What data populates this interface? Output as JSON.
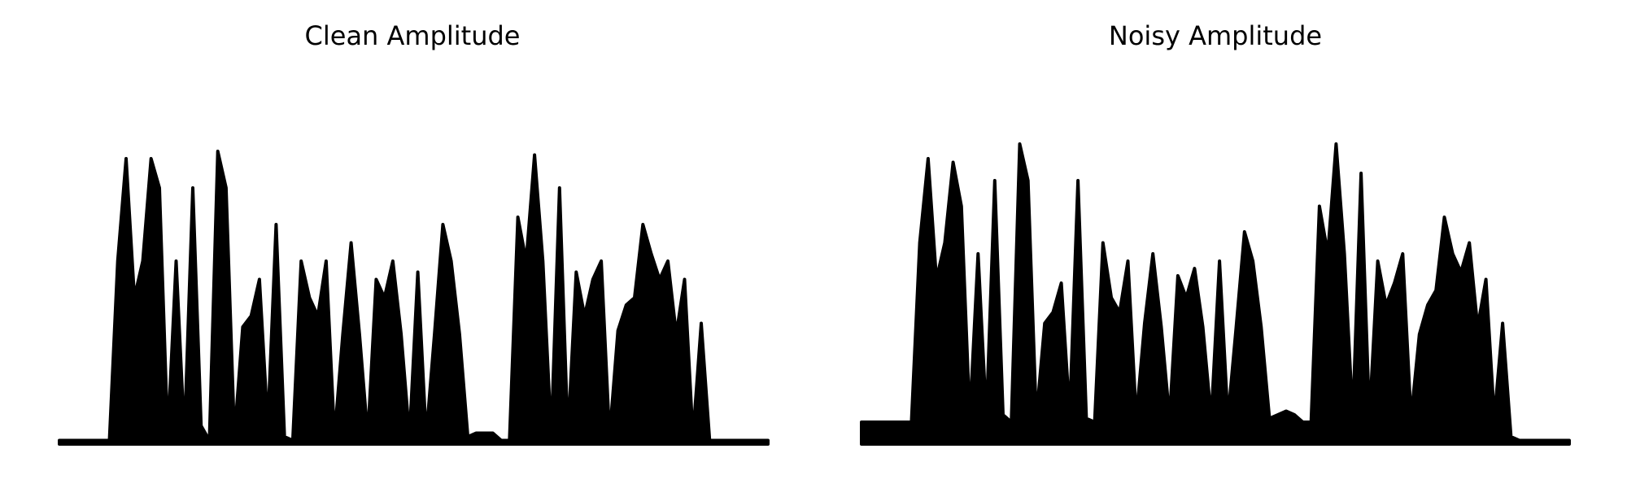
{
  "chart_data": [
    {
      "type": "line",
      "title": "Clean Amplitude",
      "color": "#000000",
      "ylim": [
        0,
        1
      ],
      "values": [
        0.01,
        0.01,
        0.01,
        0.01,
        0.01,
        0.01,
        0.01,
        0.5,
        0.78,
        0.4,
        0.5,
        0.78,
        0.7,
        0.02,
        0.5,
        0.02,
        0.7,
        0.05,
        0.01,
        0.8,
        0.7,
        0.02,
        0.32,
        0.35,
        0.45,
        0.05,
        0.6,
        0.02,
        0.01,
        0.5,
        0.4,
        0.35,
        0.5,
        0.02,
        0.3,
        0.55,
        0.3,
        0.02,
        0.45,
        0.4,
        0.5,
        0.3,
        0.02,
        0.47,
        0.02,
        0.3,
        0.6,
        0.5,
        0.3,
        0.02,
        0.03,
        0.03,
        0.03,
        0.01,
        0.01,
        0.62,
        0.5,
        0.79,
        0.5,
        0.02,
        0.7,
        0.02,
        0.47,
        0.35,
        0.45,
        0.5,
        0.02,
        0.31,
        0.38,
        0.4,
        0.6,
        0.52,
        0.45,
        0.5,
        0.3,
        0.45,
        0.02,
        0.33,
        0.01,
        0.01,
        0.01,
        0.01,
        0.01,
        0.01,
        0.01,
        0.01
      ],
      "peak": 1.0
    },
    {
      "type": "line",
      "title": "Noisy Amplitude",
      "color": "#000000",
      "ylim": [
        0,
        1
      ],
      "values": [
        0.06,
        0.06,
        0.06,
        0.06,
        0.06,
        0.06,
        0.06,
        0.55,
        0.78,
        0.45,
        0.55,
        0.77,
        0.65,
        0.07,
        0.52,
        0.07,
        0.72,
        0.08,
        0.06,
        0.82,
        0.72,
        0.07,
        0.33,
        0.36,
        0.44,
        0.08,
        0.72,
        0.07,
        0.06,
        0.55,
        0.4,
        0.36,
        0.5,
        0.07,
        0.33,
        0.52,
        0.32,
        0.07,
        0.46,
        0.4,
        0.48,
        0.32,
        0.07,
        0.5,
        0.07,
        0.32,
        0.58,
        0.5,
        0.32,
        0.07,
        0.08,
        0.09,
        0.08,
        0.06,
        0.06,
        0.65,
        0.52,
        0.82,
        0.52,
        0.07,
        0.74,
        0.07,
        0.5,
        0.38,
        0.44,
        0.52,
        0.07,
        0.3,
        0.38,
        0.42,
        0.62,
        0.52,
        0.47,
        0.55,
        0.32,
        0.45,
        0.07,
        0.33,
        0.02,
        0.01,
        0.01,
        0.01,
        0.01,
        0.01,
        0.01,
        0.01
      ],
      "peak": 1.0
    }
  ]
}
